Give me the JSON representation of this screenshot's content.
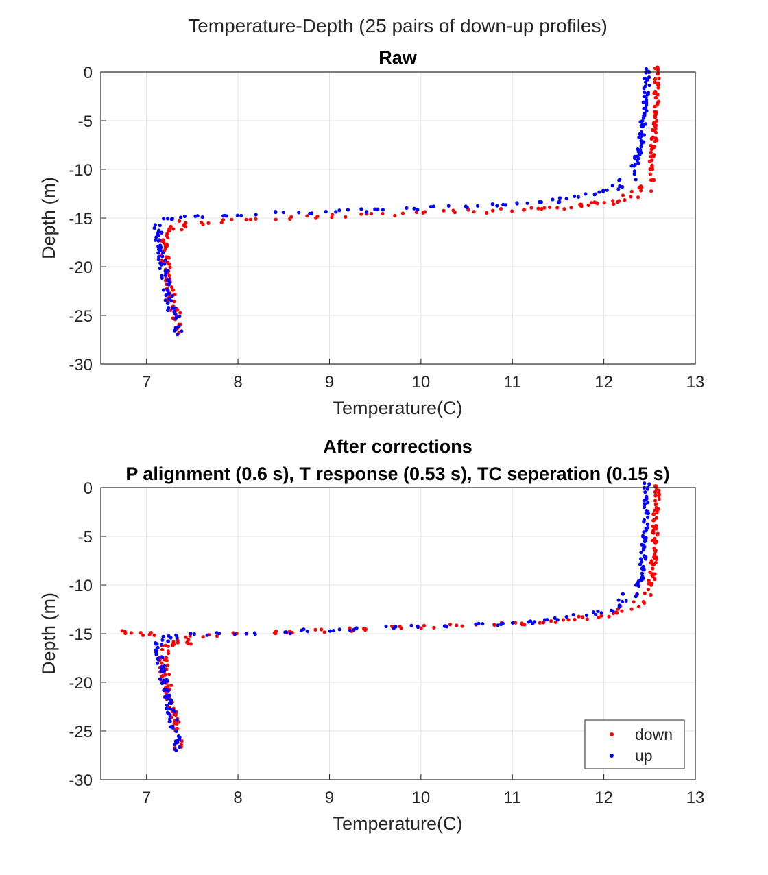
{
  "figure": {
    "title": "Temperature-Depth (25 pairs of down-up profiles)"
  },
  "legend": {
    "items": [
      {
        "label": "down",
        "color": "#ff0000"
      },
      {
        "label": "up",
        "color": "#0000ff"
      }
    ],
    "placement": "bottom-right of lower panel"
  },
  "chart_data": [
    {
      "type": "scatter",
      "title": "Raw",
      "subtitle": "",
      "xlabel": "Temperature(C)",
      "ylabel": "Depth (m)",
      "xlim": [
        6.5,
        13
      ],
      "ylim": [
        -30,
        0
      ],
      "xticks": [
        "7",
        "8",
        "9",
        "10",
        "11",
        "12",
        "13"
      ],
      "yticks": [
        "0",
        "-5",
        "-10",
        "-15",
        "-20",
        "-25",
        "-30"
      ],
      "grid": true,
      "series": [
        {
          "name": "down",
          "color": "#ff0000",
          "points": [
            [
              12.58,
              0
            ],
            [
              12.58,
              -1
            ],
            [
              12.57,
              -2
            ],
            [
              12.57,
              -3
            ],
            [
              12.56,
              -4
            ],
            [
              12.56,
              -5
            ],
            [
              12.56,
              -6
            ],
            [
              12.55,
              -7
            ],
            [
              12.54,
              -8
            ],
            [
              12.53,
              -9
            ],
            [
              12.52,
              -10
            ],
            [
              12.5,
              -11
            ],
            [
              12.45,
              -11.8
            ],
            [
              12.4,
              -12.3
            ],
            [
              12.3,
              -12.8
            ],
            [
              12.2,
              -13.1
            ],
            [
              12.1,
              -13.3
            ],
            [
              12.0,
              -13.5
            ],
            [
              11.9,
              -13.6
            ],
            [
              11.8,
              -13.7
            ],
            [
              11.7,
              -13.8
            ],
            [
              11.5,
              -13.9
            ],
            [
              11.3,
              -14.0
            ],
            [
              11.1,
              -14.1
            ],
            [
              10.9,
              -14.2
            ],
            [
              10.6,
              -14.3
            ],
            [
              10.3,
              -14.4
            ],
            [
              10.0,
              -14.5
            ],
            [
              9.7,
              -14.6
            ],
            [
              9.4,
              -14.7
            ],
            [
              9.1,
              -14.8
            ],
            [
              8.8,
              -14.9
            ],
            [
              8.5,
              -15.0
            ],
            [
              8.2,
              -15.1
            ],
            [
              7.9,
              -15.3
            ],
            [
              7.6,
              -15.5
            ],
            [
              7.4,
              -15.8
            ],
            [
              7.25,
              -16.3
            ],
            [
              7.2,
              -17.0
            ],
            [
              7.18,
              -18
            ],
            [
              7.2,
              -19
            ],
            [
              7.22,
              -20
            ],
            [
              7.24,
              -21
            ],
            [
              7.26,
              -22
            ],
            [
              7.28,
              -23
            ],
            [
              7.3,
              -24
            ],
            [
              7.33,
              -25
            ],
            [
              7.35,
              -26.3
            ]
          ]
        },
        {
          "name": "up",
          "color": "#0000ff",
          "points": [
            [
              12.47,
              0
            ],
            [
              12.47,
              -1
            ],
            [
              12.46,
              -2
            ],
            [
              12.45,
              -3
            ],
            [
              12.44,
              -4
            ],
            [
              12.43,
              -5
            ],
            [
              12.42,
              -6
            ],
            [
              12.41,
              -7
            ],
            [
              12.39,
              -8
            ],
            [
              12.36,
              -9
            ],
            [
              12.32,
              -10
            ],
            [
              12.25,
              -11
            ],
            [
              12.15,
              -11.7
            ],
            [
              12.05,
              -12.1
            ],
            [
              11.95,
              -12.4
            ],
            [
              11.8,
              -12.7
            ],
            [
              11.6,
              -13.0
            ],
            [
              11.4,
              -13.2
            ],
            [
              11.2,
              -13.4
            ],
            [
              11.0,
              -13.6
            ],
            [
              10.8,
              -13.7
            ],
            [
              10.5,
              -13.8
            ],
            [
              10.2,
              -13.9
            ],
            [
              9.9,
              -14.0
            ],
            [
              9.6,
              -14.1
            ],
            [
              9.3,
              -14.2
            ],
            [
              9.0,
              -14.3
            ],
            [
              8.7,
              -14.4
            ],
            [
              8.4,
              -14.5
            ],
            [
              8.1,
              -14.6
            ],
            [
              7.8,
              -14.7
            ],
            [
              7.5,
              -14.8
            ],
            [
              7.3,
              -14.9
            ],
            [
              7.18,
              -15.2
            ],
            [
              7.13,
              -16
            ],
            [
              7.14,
              -17
            ],
            [
              7.15,
              -18
            ],
            [
              7.17,
              -19
            ],
            [
              7.19,
              -20
            ],
            [
              7.21,
              -21
            ],
            [
              7.23,
              -22
            ],
            [
              7.25,
              -23
            ],
            [
              7.27,
              -24
            ],
            [
              7.32,
              -25
            ],
            [
              7.34,
              -26.5
            ]
          ]
        }
      ]
    },
    {
      "type": "scatter",
      "title": "After corrections",
      "subtitle": "P alignment (0.6 s), T response (0.53 s), TC seperation (0.15 s)",
      "xlabel": "Temperature(C)",
      "ylabel": "Depth (m)",
      "xlim": [
        6.5,
        13
      ],
      "ylim": [
        -30,
        0
      ],
      "xticks": [
        "7",
        "8",
        "9",
        "10",
        "11",
        "12",
        "13"
      ],
      "yticks": [
        "0",
        "-5",
        "-10",
        "-15",
        "-20",
        "-25",
        "-30"
      ],
      "grid": true,
      "series": [
        {
          "name": "down",
          "color": "#ff0000",
          "points": [
            [
              12.58,
              0
            ],
            [
              12.58,
              -1
            ],
            [
              12.57,
              -2
            ],
            [
              12.57,
              -3
            ],
            [
              12.56,
              -4
            ],
            [
              12.56,
              -5
            ],
            [
              12.55,
              -6
            ],
            [
              12.55,
              -7
            ],
            [
              12.54,
              -8
            ],
            [
              12.53,
              -9
            ],
            [
              12.51,
              -10
            ],
            [
              12.47,
              -11
            ],
            [
              12.4,
              -11.7
            ],
            [
              12.3,
              -12.2
            ],
            [
              12.2,
              -12.6
            ],
            [
              12.1,
              -12.9
            ],
            [
              11.95,
              -13.2
            ],
            [
              11.8,
              -13.4
            ],
            [
              11.6,
              -13.6
            ],
            [
              11.4,
              -13.8
            ],
            [
              11.2,
              -13.9
            ],
            [
              11.0,
              -14.0
            ],
            [
              10.7,
              -14.1
            ],
            [
              10.4,
              -14.2
            ],
            [
              10.1,
              -14.3
            ],
            [
              9.8,
              -14.4
            ],
            [
              9.5,
              -14.5
            ],
            [
              9.2,
              -14.6
            ],
            [
              8.9,
              -14.7
            ],
            [
              8.6,
              -14.8
            ],
            [
              8.3,
              -14.9
            ],
            [
              8.0,
              -15.0
            ],
            [
              7.7,
              -15.2
            ],
            [
              7.45,
              -15.6
            ],
            [
              7.3,
              -16.0
            ],
            [
              7.2,
              -16.6
            ],
            [
              7.18,
              -17.5
            ],
            [
              7.19,
              -18.5
            ],
            [
              7.21,
              -19.5
            ],
            [
              7.23,
              -20.5
            ],
            [
              7.25,
              -21.5
            ],
            [
              7.27,
              -22.5
            ],
            [
              7.3,
              -23.5
            ],
            [
              7.32,
              -24.5
            ],
            [
              7.35,
              -26.3
            ],
            [
              6.85,
              -14.8
            ],
            [
              6.95,
              -15.0
            ],
            [
              7.05,
              -15.0
            ]
          ]
        },
        {
          "name": "up",
          "color": "#0000ff",
          "points": [
            [
              12.47,
              0
            ],
            [
              12.47,
              -1
            ],
            [
              12.46,
              -2
            ],
            [
              12.46,
              -3
            ],
            [
              12.45,
              -4
            ],
            [
              12.45,
              -5
            ],
            [
              12.44,
              -6
            ],
            [
              12.43,
              -7
            ],
            [
              12.42,
              -8
            ],
            [
              12.4,
              -9
            ],
            [
              12.36,
              -10
            ],
            [
              12.3,
              -11
            ],
            [
              12.2,
              -11.7
            ],
            [
              12.1,
              -12.2
            ],
            [
              12.0,
              -12.6
            ],
            [
              11.85,
              -12.9
            ],
            [
              11.7,
              -13.2
            ],
            [
              11.5,
              -13.5
            ],
            [
              11.3,
              -13.7
            ],
            [
              11.1,
              -13.9
            ],
            [
              10.85,
              -14.0
            ],
            [
              10.55,
              -14.1
            ],
            [
              10.25,
              -14.2
            ],
            [
              9.95,
              -14.3
            ],
            [
              9.65,
              -14.4
            ],
            [
              9.35,
              -14.5
            ],
            [
              9.05,
              -14.6
            ],
            [
              8.75,
              -14.7
            ],
            [
              8.45,
              -14.8
            ],
            [
              8.15,
              -14.9
            ],
            [
              7.85,
              -15.0
            ],
            [
              7.55,
              -15.1
            ],
            [
              7.35,
              -15.3
            ],
            [
              7.2,
              -15.6
            ],
            [
              7.13,
              -16.3
            ],
            [
              7.14,
              -17.3
            ],
            [
              7.16,
              -18.3
            ],
            [
              7.18,
              -19.3
            ],
            [
              7.2,
              -20.3
            ],
            [
              7.22,
              -21.3
            ],
            [
              7.24,
              -22.3
            ],
            [
              7.27,
              -23.3
            ],
            [
              7.29,
              -24.3
            ],
            [
              7.33,
              -25.5
            ],
            [
              7.34,
              -26.5
            ]
          ]
        }
      ]
    }
  ]
}
